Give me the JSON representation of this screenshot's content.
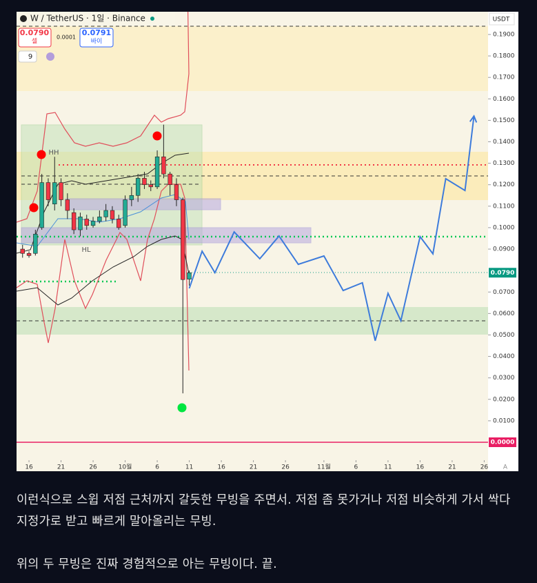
{
  "header": {
    "symbol": "W / TetherUS · 1일 · Binance",
    "sell_price": "0.0790",
    "sell_label": "셀",
    "spread": "0.0001",
    "buy_price": "0.0791",
    "buy_label": "바이",
    "indicator_count": "9",
    "currency": "USDT",
    "auto_label": "A"
  },
  "chart_data": {
    "type": "candlestick",
    "xlim": [
      -1.94,
      71.6
    ],
    "ylim": [
      -0.0135,
      0.2006
    ],
    "xticks": [
      {
        "value": 0,
        "label": "16"
      },
      {
        "value": 5,
        "label": "21"
      },
      {
        "value": 10,
        "label": "26"
      },
      {
        "value": 15,
        "label": "10월"
      },
      {
        "value": 20,
        "label": "6"
      },
      {
        "value": 25,
        "label": "11"
      },
      {
        "value": 30,
        "label": "16"
      },
      {
        "value": 35,
        "label": "21"
      },
      {
        "value": 40,
        "label": "26"
      },
      {
        "value": 46,
        "label": "11월"
      },
      {
        "value": 51,
        "label": "6"
      },
      {
        "value": 56,
        "label": "11"
      },
      {
        "value": 61,
        "label": "16"
      },
      {
        "value": 66,
        "label": "21"
      },
      {
        "value": 71,
        "label": "26"
      }
    ],
    "yticks": [
      {
        "value": 0.19,
        "label": "0.1900"
      },
      {
        "value": 0.18,
        "label": "0.1800"
      },
      {
        "value": 0.17,
        "label": "0.1700"
      },
      {
        "value": 0.16,
        "label": "0.1600"
      },
      {
        "value": 0.15,
        "label": "0.1500"
      },
      {
        "value": 0.14,
        "label": "0.1400"
      },
      {
        "value": 0.13,
        "label": "0.1300"
      },
      {
        "value": 0.12,
        "label": "0.1200"
      },
      {
        "value": 0.11,
        "label": "0.1100"
      },
      {
        "value": 0.1,
        "label": "0.1000"
      },
      {
        "value": 0.09,
        "label": "0.0900"
      },
      {
        "value": 0.07,
        "label": "0.0700"
      },
      {
        "value": 0.06,
        "label": "0.0600"
      },
      {
        "value": 0.05,
        "label": "0.0500"
      },
      {
        "value": 0.04,
        "label": "0.0400"
      },
      {
        "value": 0.03,
        "label": "0.0300"
      },
      {
        "value": 0.02,
        "label": "0.0200"
      },
      {
        "value": 0.01,
        "label": "0.0100"
      }
    ],
    "last_price": {
      "value": 0.079,
      "label": "0.0790",
      "color": "#089981"
    },
    "zero_line": {
      "value": 0,
      "label": "0.0000",
      "color": "#e91e63"
    },
    "up_color": "#22ab94",
    "down_color": "#f23645",
    "x": [
      -1,
      0,
      1,
      2,
      3,
      4,
      5,
      6,
      7,
      8,
      9,
      10,
      11,
      12,
      13,
      14,
      15,
      16,
      17,
      18,
      19,
      20,
      21,
      22,
      23,
      24,
      25
    ],
    "open": [
      0.09,
      0.088,
      0.088,
      0.1,
      0.121,
      0.111,
      0.121,
      0.113,
      0.107,
      0.099,
      0.104,
      0.101,
      0.103,
      0.105,
      0.108,
      0.104,
      0.101,
      0.113,
      0.115,
      0.123,
      0.12,
      0.119,
      0.133,
      0.125,
      0.12,
      0.113,
      0.076
    ],
    "high": [
      0.092,
      0.089,
      0.099,
      0.125,
      0.123,
      0.133,
      0.123,
      0.116,
      0.109,
      0.107,
      0.106,
      0.105,
      0.108,
      0.111,
      0.11,
      0.106,
      0.115,
      0.119,
      0.125,
      0.126,
      0.122,
      0.136,
      0.148,
      0.126,
      0.123,
      0.114,
      0.08
    ],
    "low": [
      0.086,
      0.086,
      0.087,
      0.099,
      0.11,
      0.108,
      0.11,
      0.104,
      0.097,
      0.096,
      0.099,
      0.1,
      0.102,
      0.103,
      0.102,
      0.099,
      0.1,
      0.11,
      0.112,
      0.118,
      0.117,
      0.118,
      0.123,
      0.115,
      0.11,
      0.0228,
      0.073
    ],
    "close": [
      0.088,
      0.087,
      0.097,
      0.121,
      0.113,
      0.121,
      0.113,
      0.108,
      0.099,
      0.105,
      0.101,
      0.103,
      0.105,
      0.108,
      0.104,
      0.1,
      0.113,
      0.115,
      0.123,
      0.12,
      0.119,
      0.133,
      0.125,
      0.12,
      0.113,
      0.0758,
      0.079
    ],
    "projection": {
      "color": "#3d7bdb",
      "x": [
        25,
        27,
        29,
        32,
        36,
        39,
        42,
        46,
        49,
        52,
        54,
        56,
        58,
        61,
        63,
        65,
        68,
        69.4
      ],
      "values": [
        0.0717,
        0.089,
        0.079,
        0.098,
        0.0855,
        0.0961,
        0.0829,
        0.0868,
        0.0707,
        0.0743,
        0.0473,
        0.0694,
        0.0566,
        0.0958,
        0.0878,
        0.1228,
        0.1173,
        0.152
      ]
    },
    "annotations": [
      "HH",
      "HL"
    ]
  },
  "paragraphs": [
    "이런식으로 스윕 저점 근처까지 갈듯한 무빙을 주면서. 저점 좀 못가거나 저점 비슷하게 가서 싹다 지정가로 받고 빠르게 말아올리는 무빙.",
    "위의 두 무빙은 진짜 경험적으로 아는 무빙이다. 끝."
  ]
}
